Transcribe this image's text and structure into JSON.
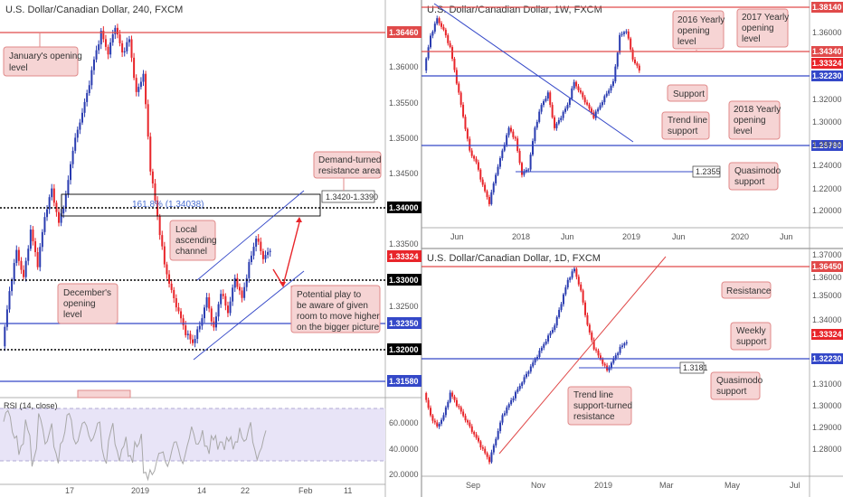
{
  "panel_left": {
    "title": "U.S. Dollar/Canadian Dollar, 240, FXCM",
    "x_ticks": [
      "17",
      "2019",
      "14",
      "22",
      "Feb",
      "11"
    ],
    "y_ticks": [
      "1.36000",
      "1.35500",
      "1.35000",
      "1.34500",
      "1.33500",
      "1.32500"
    ],
    "levels": {
      "l1_3646": "1.36460",
      "l1_3400": "1.34000",
      "l1_3332": "1.33324",
      "l1_3300": "1.33000",
      "l1_3235": "1.32350",
      "l1_3200": "1.32000",
      "l1_3158": "1.31580"
    },
    "fib_label": "161.8% (1.34038)",
    "zone_label": "1.3420-1.3390",
    "annotations": {
      "jan_open": [
        "January's opening",
        "level"
      ],
      "dec_open": [
        "December's",
        "opening",
        "level"
      ],
      "demand": [
        "Demand-turned",
        "resistance area"
      ],
      "channel": [
        "Local",
        "ascending",
        "channel"
      ],
      "play": [
        "Potential play to",
        "be aware of given",
        "room to move higher",
        "on the bigger picture"
      ]
    },
    "rsi": {
      "label": "RSI (14, close)",
      "y_ticks": [
        "60.0000",
        "40.0000",
        "20.0000"
      ]
    }
  },
  "panel_weekly": {
    "title": "U.S. Dollar/Canadian Dollar, 1W, FXCM",
    "x_ticks": [
      "Jun",
      "2018",
      "Jun",
      "2019",
      "Jun",
      "2020",
      "Jun"
    ],
    "y_ticks": [
      "1.36000",
      "1.32000",
      "1.30000",
      "1.28000",
      "1.24000",
      "1.22000",
      "1.20000"
    ],
    "levels": {
      "w_3814": "1.38140",
      "w_3434": "1.34340",
      "w_3332": "1.33324",
      "w_3223": "1.32230",
      "w_2579": "1.25790"
    },
    "quasi_label": "1.2355",
    "annotations": {
      "y2016": [
        "2016 Yearly",
        "opening",
        "level"
      ],
      "y2017": [
        "2017 Yearly",
        "opening",
        "level"
      ],
      "support": [
        "Support"
      ],
      "trend": [
        "Trend line",
        "support"
      ],
      "y2018": [
        "2018 Yearly",
        "opening",
        "level"
      ],
      "quasi": [
        "Quasimodo",
        "support"
      ]
    }
  },
  "panel_daily": {
    "title": "U.S. Dollar/Canadian Dollar, 1D, FXCM",
    "x_ticks": [
      "Sep",
      "Nov",
      "2019",
      "Mar",
      "May",
      "Jul"
    ],
    "y_ticks": [
      "1.37000",
      "1.36000",
      "1.35000",
      "1.34000",
      "1.31000",
      "1.30000",
      "1.29000",
      "1.28000"
    ],
    "levels": {
      "d_3645": "1.36450",
      "d_3332": "1.33324",
      "d_3223": "1.32230"
    },
    "quasi_label": "1.3181",
    "annotations": {
      "resistance": [
        "Resistance"
      ],
      "weekly": [
        "Weekly",
        "support"
      ],
      "quasi": [
        "Quasimodo",
        "support"
      ],
      "trend": [
        "Trend line",
        "support-turned",
        "resistance"
      ]
    }
  },
  "colors": {
    "bull": "#2a3cb0",
    "bear": "#e8252a",
    "red_level": "#e04a4a",
    "blue_level": "#3448c8",
    "callout_bg": "#f6d4d4",
    "callout_border": "#e08a8a",
    "rsi_band": "#e8e4f7",
    "rsi_line": "#a8a8a8"
  },
  "chart_data": [
    {
      "type": "candlestick",
      "title": "U.S. Dollar/Canadian Dollar, 240, FXCM",
      "x_ticks": [
        "17",
        "2019",
        "14",
        "22",
        "Feb",
        "11"
      ],
      "ylim": [
        1.312,
        1.369
      ],
      "key_levels": [
        1.3646,
        1.34,
        1.33324,
        1.33,
        1.3235,
        1.32,
        1.3158
      ],
      "close_path": [
        1.319,
        1.327,
        1.333,
        1.329,
        1.336,
        1.331,
        1.338,
        1.342,
        1.337,
        1.341,
        1.348,
        1.352,
        1.356,
        1.361,
        1.365,
        1.362,
        1.366,
        1.362,
        1.364,
        1.356,
        1.359,
        1.345,
        1.338,
        1.331,
        1.327,
        1.324,
        1.321,
        1.3195,
        1.322,
        1.326,
        1.3215,
        1.327,
        1.324,
        1.329,
        1.326,
        1.331,
        1.335,
        1.332,
        1.333
      ]
    },
    {
      "type": "candlestick",
      "title": "U.S. Dollar/Canadian Dollar, 1W, FXCM",
      "x_ticks": [
        "Jun",
        "2018",
        "Jun",
        "2019",
        "Jun",
        "2020",
        "Jun"
      ],
      "ylim": [
        1.195,
        1.385
      ],
      "key_levels": [
        1.3814,
        1.3434,
        1.33324,
        1.3223,
        1.2579,
        1.2355
      ],
      "close_path": [
        1.33,
        1.36,
        1.375,
        1.365,
        1.35,
        1.32,
        1.29,
        1.26,
        1.25,
        1.23,
        1.215,
        1.24,
        1.26,
        1.28,
        1.27,
        1.24,
        1.245,
        1.28,
        1.3,
        1.31,
        1.28,
        1.29,
        1.3,
        1.32,
        1.31,
        1.3,
        1.29,
        1.3,
        1.31,
        1.32,
        1.36,
        1.365,
        1.34,
        1.33
      ]
    },
    {
      "type": "candlestick",
      "title": "U.S. Dollar/Canadian Dollar, 1D, FXCM",
      "x_ticks": [
        "Sep",
        "Nov",
        "2019",
        "Mar",
        "May",
        "Jul"
      ],
      "ylim": [
        1.276,
        1.372
      ],
      "key_levels": [
        1.3645,
        1.33324,
        1.3223,
        1.3181
      ],
      "close_path": [
        1.31,
        1.3,
        1.295,
        1.3,
        1.31,
        1.305,
        1.3,
        1.295,
        1.29,
        1.285,
        1.28,
        1.29,
        1.3,
        1.305,
        1.31,
        1.315,
        1.32,
        1.325,
        1.33,
        1.335,
        1.34,
        1.35,
        1.36,
        1.365,
        1.355,
        1.34,
        1.33,
        1.325,
        1.32,
        1.325,
        1.33,
        1.333
      ]
    }
  ]
}
